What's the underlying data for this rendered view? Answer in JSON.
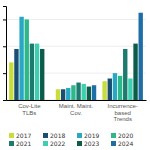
{
  "chart_data": {
    "type": "bar",
    "categories": [
      "Cov-Lite\nTLBs",
      "Maint. Maint.\nCov.",
      "Incurrence-\nbased\nTrends"
    ],
    "series": [
      {
        "name": "2017",
        "color": "#c8dc3a",
        "values": [
          28,
          8,
          14
        ]
      },
      {
        "name": "2018",
        "color": "#1a4f72",
        "values": [
          38,
          8,
          16
        ]
      },
      {
        "name": "2019",
        "color": "#29a8c4",
        "values": [
          62,
          9,
          20
        ]
      },
      {
        "name": "2020",
        "color": "#2db88a",
        "values": [
          60,
          11,
          18
        ]
      },
      {
        "name": "2021",
        "color": "#1d7a6e",
        "values": [
          42,
          13,
          38
        ]
      },
      {
        "name": "2022",
        "color": "#3ecfb0",
        "values": [
          42,
          12,
          16
        ]
      },
      {
        "name": "2023",
        "color": "#0d5c4a",
        "values": [
          38,
          10,
          42
        ]
      },
      {
        "name": "2024",
        "color": "#1d6ea5",
        "values": [
          0,
          11,
          65
        ]
      }
    ],
    "ylim": [
      0,
      70
    ],
    "yticks": [
      0,
      20,
      40,
      60
    ],
    "grid": true,
    "tick_labels": "x",
    "legend": "bottom"
  }
}
